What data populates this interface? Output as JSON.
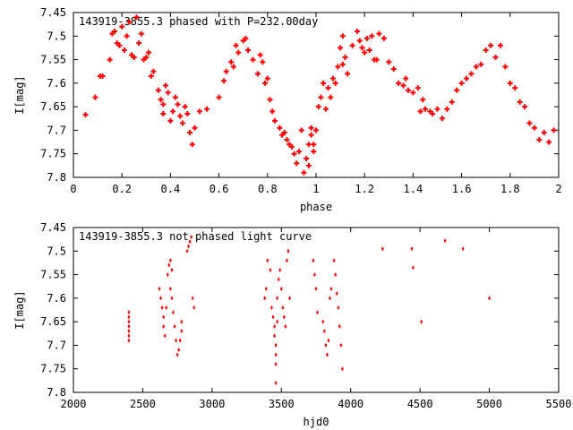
{
  "chart_data": [
    {
      "type": "scatter",
      "title": "143919-3855.3 phased with P=232.00day",
      "xlabel": "phase",
      "ylabel": "I[mag]",
      "xlim": [
        0,
        2
      ],
      "ylim": [
        7.8,
        7.45
      ],
      "y_inverted": true,
      "grid": false,
      "color": "#ff0000",
      "marker": "star",
      "xticks": [
        "0",
        "0.2",
        "0.4",
        "0.6",
        "0.8",
        "1",
        "1.2",
        "1.4",
        "1.6",
        "1.8",
        "2"
      ],
      "yticks": [
        "7.45",
        "7.5",
        "7.55",
        "7.6",
        "7.65",
        "7.7",
        "7.75",
        "7.8"
      ],
      "x": [
        0.05,
        0.09,
        0.11,
        0.12,
        0.15,
        0.16,
        0.17,
        0.18,
        0.19,
        0.2,
        0.21,
        0.22,
        0.23,
        0.24,
        0.25,
        0.26,
        0.27,
        0.28,
        0.29,
        0.3,
        0.31,
        0.32,
        0.33,
        0.35,
        0.36,
        0.37,
        0.37,
        0.38,
        0.39,
        0.4,
        0.41,
        0.42,
        0.43,
        0.44,
        0.45,
        0.46,
        0.47,
        0.48,
        0.49,
        0.5,
        0.52,
        0.55,
        0.6,
        0.62,
        0.63,
        0.65,
        0.66,
        0.67,
        0.68,
        0.7,
        0.71,
        0.72,
        0.74,
        0.76,
        0.77,
        0.78,
        0.79,
        0.8,
        0.81,
        0.82,
        0.83,
        0.85,
        0.86,
        0.87,
        0.88,
        0.89,
        0.9,
        0.91,
        0.92,
        0.93,
        0.94,
        0.95,
        0.96,
        0.97,
        0.97,
        0.98,
        0.98,
        0.99,
        0.99,
        1.0,
        1.01,
        1.02,
        1.03,
        1.04,
        1.05,
        1.06,
        1.07,
        1.08,
        1.09,
        1.1,
        1.11,
        1.11,
        1.12,
        1.13,
        1.15,
        1.17,
        1.18,
        1.19,
        1.2,
        1.21,
        1.22,
        1.23,
        1.24,
        1.25,
        1.26,
        1.28,
        1.3,
        1.32,
        1.34,
        1.36,
        1.37,
        1.38,
        1.4,
        1.42,
        1.43,
        1.44,
        1.45,
        1.47,
        1.48,
        1.5,
        1.52,
        1.54,
        1.56,
        1.58,
        1.6,
        1.62,
        1.64,
        1.66,
        1.68,
        1.7,
        1.72,
        1.74,
        1.76,
        1.78,
        1.8,
        1.82,
        1.84,
        1.86,
        1.88,
        1.9,
        1.92,
        1.94,
        1.96,
        1.98
      ],
      "y": [
        7.667,
        7.63,
        7.585,
        7.585,
        7.55,
        7.495,
        7.49,
        7.515,
        7.52,
        7.48,
        7.53,
        7.5,
        7.47,
        7.54,
        7.545,
        7.46,
        7.515,
        7.495,
        7.55,
        7.545,
        7.535,
        7.585,
        7.575,
        7.615,
        7.635,
        7.645,
        7.665,
        7.605,
        7.62,
        7.68,
        7.66,
        7.63,
        7.645,
        7.67,
        7.685,
        7.65,
        7.665,
        7.705,
        7.73,
        7.695,
        7.66,
        7.655,
        7.63,
        7.595,
        7.575,
        7.555,
        7.565,
        7.52,
        7.535,
        7.51,
        7.505,
        7.53,
        7.55,
        7.58,
        7.54,
        7.555,
        7.6,
        7.59,
        7.635,
        7.66,
        7.68,
        7.695,
        7.71,
        7.705,
        7.72,
        7.73,
        7.735,
        7.75,
        7.77,
        7.745,
        7.7,
        7.79,
        7.76,
        7.73,
        7.775,
        7.71,
        7.695,
        7.73,
        7.745,
        7.7,
        7.65,
        7.63,
        7.6,
        7.655,
        7.61,
        7.63,
        7.59,
        7.6,
        7.565,
        7.525,
        7.5,
        7.56,
        7.545,
        7.58,
        7.52,
        7.49,
        7.51,
        7.525,
        7.535,
        7.505,
        7.53,
        7.5,
        7.55,
        7.55,
        7.495,
        7.505,
        7.555,
        7.57,
        7.6,
        7.605,
        7.59,
        7.615,
        7.62,
        7.61,
        7.66,
        7.635,
        7.655,
        7.66,
        7.665,
        7.655,
        7.675,
        7.655,
        7.64,
        7.615,
        7.6,
        7.59,
        7.58,
        7.565,
        7.56,
        7.53,
        7.52,
        7.545,
        7.52,
        7.565,
        7.6,
        7.61,
        7.64,
        7.65,
        7.685,
        7.695,
        7.72,
        7.705,
        7.725,
        7.7
      ]
    },
    {
      "type": "scatter",
      "title": "143919-3855.3 not phased light curve",
      "xlabel": "hjd0",
      "ylabel": "I[mag]",
      "xlim": [
        2000,
        5500
      ],
      "ylim": [
        7.8,
        7.45
      ],
      "y_inverted": true,
      "grid": false,
      "color": "#ff0000",
      "marker": "diamond",
      "xticks": [
        "2000",
        "2500",
        "3000",
        "3500",
        "4000",
        "4500",
        "5000",
        "5500"
      ],
      "yticks": [
        "7.45",
        "7.5",
        "7.55",
        "7.6",
        "7.65",
        "7.7",
        "7.75",
        "7.8"
      ],
      "x": [
        2400,
        2400,
        2400,
        2400,
        2400,
        2400,
        2400,
        2620,
        2630,
        2640,
        2650,
        2650,
        2660,
        2670,
        2680,
        2690,
        2700,
        2700,
        2710,
        2710,
        2720,
        2730,
        2740,
        2750,
        2760,
        2770,
        2780,
        2780,
        2820,
        2830,
        2840,
        2850,
        2860,
        2870,
        3380,
        3390,
        3400,
        3420,
        3430,
        3440,
        3450,
        3450,
        3460,
        3460,
        3460,
        3460,
        3470,
        3470,
        3480,
        3490,
        3500,
        3510,
        3520,
        3530,
        3540,
        3550,
        3560,
        3730,
        3740,
        3750,
        3760,
        3800,
        3810,
        3820,
        3830,
        3840,
        3850,
        3860,
        3880,
        3890,
        3900,
        3910,
        3920,
        3930,
        3940,
        4230,
        4440,
        4450,
        4510,
        4680,
        4810,
        5000
      ],
      "y": [
        7.63,
        7.64,
        7.65,
        7.66,
        7.67,
        7.68,
        7.69,
        7.58,
        7.6,
        7.62,
        7.64,
        7.66,
        7.68,
        7.62,
        7.55,
        7.53,
        7.52,
        7.58,
        7.54,
        7.6,
        7.63,
        7.66,
        7.69,
        7.72,
        7.71,
        7.69,
        7.67,
        7.65,
        7.5,
        7.49,
        7.48,
        7.47,
        7.6,
        7.62,
        7.6,
        7.58,
        7.52,
        7.54,
        7.62,
        7.64,
        7.66,
        7.68,
        7.7,
        7.72,
        7.74,
        7.78,
        7.6,
        7.65,
        7.56,
        7.54,
        7.58,
        7.62,
        7.64,
        7.66,
        7.52,
        7.5,
        7.6,
        7.52,
        7.55,
        7.58,
        7.63,
        7.65,
        7.67,
        7.7,
        7.72,
        7.69,
        7.6,
        7.58,
        7.52,
        7.55,
        7.59,
        7.62,
        7.66,
        7.7,
        7.75,
        7.495,
        7.495,
        7.535,
        7.65,
        7.478,
        7.495,
        7.6
      ]
    }
  ]
}
